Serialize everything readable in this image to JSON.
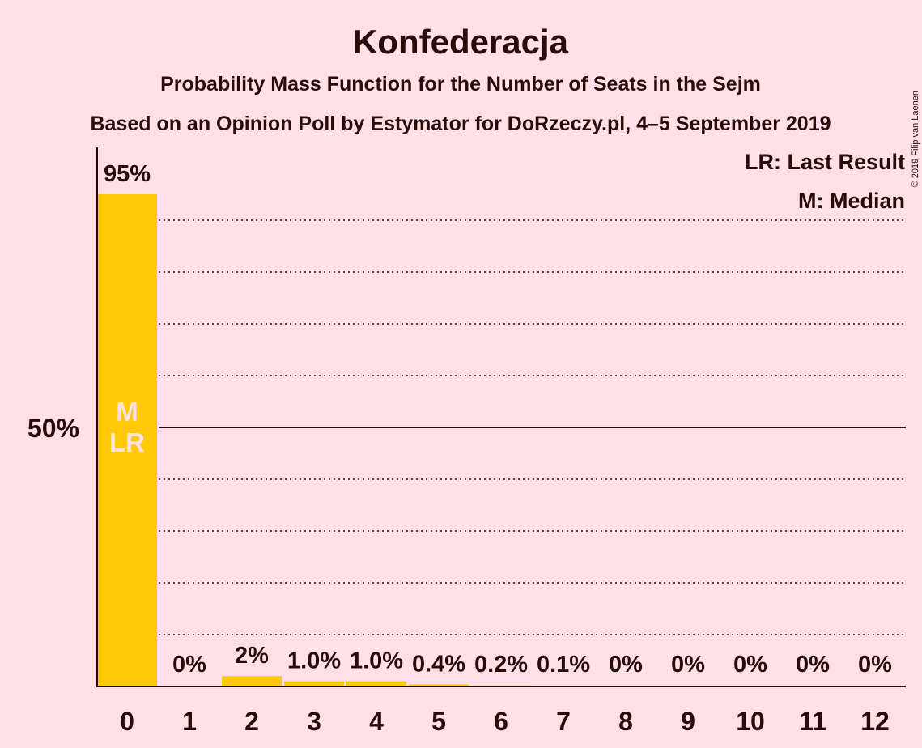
{
  "chart_data": {
    "type": "bar",
    "title": "Konfederacja",
    "subtitle": "Probability Mass Function for the Number of Seats in the Sejm",
    "subtitle2": "Based on an Opinion Poll by Estymator for DoRzeczy.pl, 4–5 September 2019",
    "copyright": "© 2019 Filip van Laenen",
    "categories": [
      "0",
      "1",
      "2",
      "3",
      "4",
      "5",
      "6",
      "7",
      "8",
      "9",
      "10",
      "11",
      "12"
    ],
    "values": [
      95,
      0,
      2,
      1.0,
      1.0,
      0.4,
      0.2,
      0.1,
      0,
      0,
      0,
      0,
      0
    ],
    "value_labels": [
      "95%",
      "0%",
      "2%",
      "1.0%",
      "1.0%",
      "0.4%",
      "0.2%",
      "0.1%",
      "0%",
      "0%",
      "0%",
      "0%",
      "0%"
    ],
    "bar_inner_label": "M\nLR",
    "y_tick_label": "50%",
    "y_tick_value": 50,
    "ylim": [
      0,
      100
    ],
    "grid_step": 10,
    "legend": [
      "LR: Last Result",
      "M: Median"
    ],
    "legend_position": "top-right",
    "colors": {
      "bar": "#ffc907",
      "background": "#ffe0e6",
      "text": "#2a0a0a",
      "inner_label": "#ffe0e6"
    }
  }
}
